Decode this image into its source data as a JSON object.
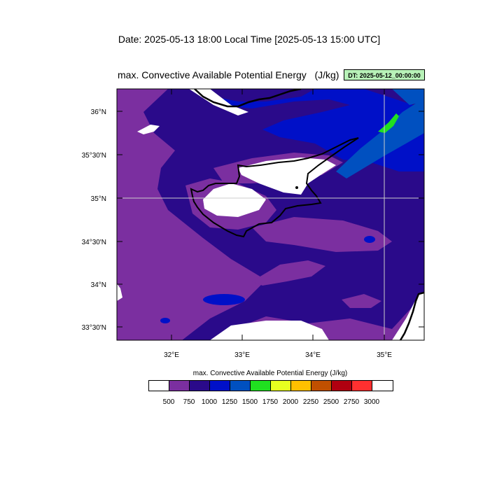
{
  "header": {
    "date_line": "Date: 2025-05-13  18:00 Local Time [2025-05-13  15:00 UTC]"
  },
  "plot": {
    "title": "max. Convective Available Potential Energy   (J/kg)",
    "dt_badge": "DT: 2025-05-12_00:00:00",
    "lat_labels": [
      "36°N",
      "35°30'N",
      "35°N",
      "34°30'N",
      "34°N",
      "33°30'N"
    ],
    "lon_labels": [
      "32°E",
      "33°E",
      "34°E",
      "35°E"
    ]
  },
  "legend": {
    "title": "max. Convective Available Potential Energy  (J/kg)",
    "colors": [
      "#ffffff",
      "#7b2fa0",
      "#2a0a8a",
      "#0010c8",
      "#0050c0",
      "#20e020",
      "#e8ff20",
      "#ffc000",
      "#c05000",
      "#b00010",
      "#ff3030",
      "#ffffff"
    ],
    "labels": [
      "500",
      "750",
      "1000",
      "1250",
      "1500",
      "1750",
      "2000",
      "2250",
      "2500",
      "2750",
      "3000"
    ]
  },
  "colors": {
    "purple_750": "#7b2fa0",
    "indigo_1000": "#2a0a8a",
    "blue_1250": "#0010c8",
    "blue_1500": "#0050c0",
    "green_1750": "#20e020"
  }
}
